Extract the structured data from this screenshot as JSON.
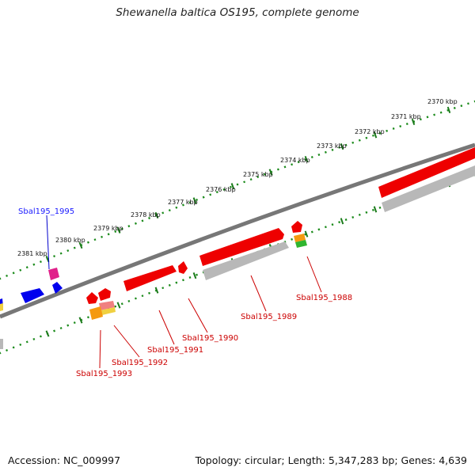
{
  "title": "Shewanella baltica OS195, complete genome",
  "accession": "Accession: NC_009997",
  "summary": "Topology: circular; Length: 5,347,283 bp; Genes: 4,639",
  "scale_labels": [
    "2370 kbp",
    "2371 kbp",
    "2372 kbp",
    "2373 kbp",
    "2374 kbp",
    "2375 kbp",
    "2376 kbp",
    "2377 kbp",
    "2378 kbp",
    "2379 kbp",
    "2380 kbp",
    "2381 kbp"
  ],
  "gene_labels": [
    {
      "text": "Sbal195_1995",
      "color": "#1a1aff"
    },
    {
      "text": "Sbal195_1988",
      "color": "#cc0000"
    },
    {
      "text": "Sbal195_1989",
      "color": "#cc0000"
    },
    {
      "text": "Sbal195_1990",
      "color": "#cc0000"
    },
    {
      "text": "Sbal195_1991",
      "color": "#cc0000"
    },
    {
      "text": "Sbal195_1992",
      "color": "#cc0000"
    },
    {
      "text": "Sbal195_1993",
      "color": "#cc0000"
    }
  ],
  "colors": {
    "backbone": "#777777",
    "tick_minor": "#1a8a1a",
    "tick_major": "#1a7a1a",
    "gene_red": "#ee0000",
    "gene_gray": "#b8b8b8",
    "gene_blue": "#0000ee",
    "gene_magenta": "#e0208a",
    "gene_orange": "#f59a10",
    "gene_green": "#2fb52f",
    "gene_pink": "#f08080",
    "gene_yellow": "#f0d040",
    "label_line_red": "#cc0000",
    "label_line_blue": "#0000cc"
  }
}
